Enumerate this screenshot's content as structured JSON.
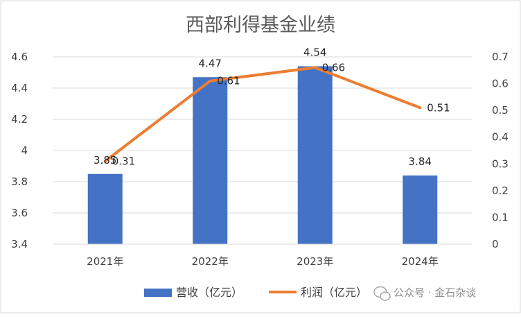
{
  "chart_data": {
    "type": "bar",
    "title": "西部利得基金业绩",
    "categories": [
      "2021年",
      "2022年",
      "2023年",
      "2024年"
    ],
    "series": [
      {
        "name": "营收（亿元）",
        "type": "bar",
        "axis": "left",
        "color": "#4472C4",
        "values": [
          3.85,
          4.47,
          4.54,
          3.84
        ]
      },
      {
        "name": "利润（亿元）",
        "type": "line",
        "axis": "right",
        "color": "#ED7D31",
        "values": [
          0.31,
          0.61,
          0.66,
          0.51
        ]
      }
    ],
    "y_left": {
      "min": 3.4,
      "max": 4.6,
      "ticks": [
        "3.4",
        "3.6",
        "3.8",
        "4",
        "4.2",
        "4.4",
        "4.6"
      ]
    },
    "y_right": {
      "min": 0,
      "max": 0.7,
      "ticks": [
        "0",
        "0.1",
        "0.2",
        "0.3",
        "0.4",
        "0.5",
        "0.6",
        "0.7"
      ]
    },
    "bar_labels": [
      "3.85",
      "4.47",
      "4.54",
      "3.84"
    ],
    "line_labels": [
      "0.31",
      "0.61",
      "0.66",
      "0.51"
    ],
    "grid": true,
    "legend_position": "bottom"
  },
  "watermark": {
    "text": "公众号 · 金石杂谈",
    "icon": "wechat-icon"
  }
}
